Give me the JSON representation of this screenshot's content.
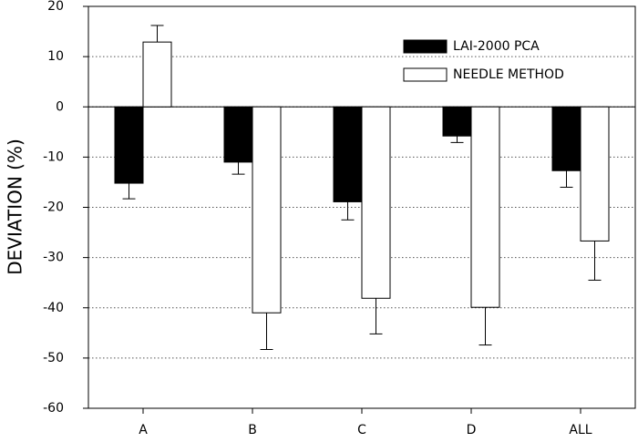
{
  "chart_data": {
    "type": "bar",
    "ylabel": "DEVIATION (%)",
    "categories": [
      "A",
      "B",
      "C",
      "D",
      "ALL"
    ],
    "series": [
      {
        "name": "LAI-2000 PCA",
        "color": "#000000",
        "values": [
          -15.2,
          -11,
          -18.9,
          -5.8,
          -12.7
        ],
        "errors": [
          3.1,
          2.4,
          3.6,
          1.3,
          3.3
        ]
      },
      {
        "name": "NEEDLE METHOD",
        "color": "#ffffff",
        "values": [
          12.9,
          -41,
          -38.1,
          -39.9,
          -26.7
        ],
        "errors": [
          3.3,
          7.3,
          7.1,
          7.5,
          7.8
        ]
      }
    ],
    "edgecolor": "#000000",
    "ylim": [
      -60,
      20
    ],
    "yticks": [
      -60,
      -50,
      -40,
      -30,
      -20,
      -10,
      0,
      10,
      20
    ],
    "grid": true,
    "legend": "upper right"
  }
}
